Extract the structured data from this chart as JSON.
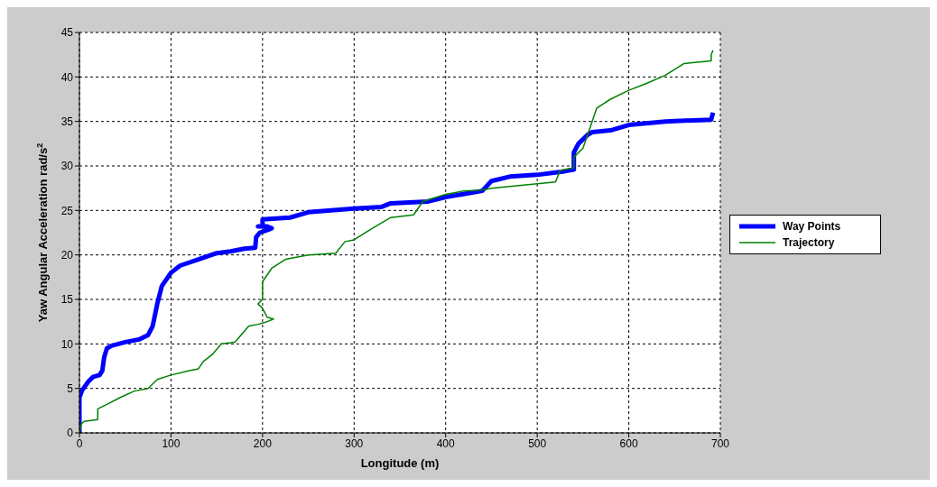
{
  "chart_data": {
    "type": "line",
    "xlabel": "Longitude (m)",
    "ylabel": "Yaw Angular Acceleration rad/s$^{2}$",
    "xlim": [
      0,
      700
    ],
    "xticks": [
      0,
      100,
      200,
      300,
      400,
      500,
      600,
      700
    ],
    "ylim": [
      0,
      45
    ],
    "yticks": [
      0,
      5,
      10,
      15,
      20,
      25,
      30,
      35,
      40,
      45
    ],
    "grid": true,
    "legend": "right",
    "marker": "none",
    "line_style": "solid",
    "series": [
      {
        "name": "Way Points",
        "color": "#0000ff",
        "x": [
          0,
          0,
          3,
          10,
          15,
          22,
          25,
          27,
          30,
          35,
          50,
          65,
          75,
          80,
          85,
          90,
          100,
          110,
          130,
          150,
          165,
          180,
          192,
          193,
          197,
          205,
          210,
          205,
          195,
          200,
          200,
          230,
          250,
          300,
          330,
          340,
          380,
          400,
          440,
          450,
          470,
          500,
          530,
          540,
          540,
          545,
          555,
          560,
          580,
          600,
          640,
          690,
          692
        ],
        "values": [
          0,
          4,
          4.8,
          5.8,
          6.3,
          6.5,
          7,
          8.5,
          9.5,
          9.8,
          10.2,
          10.5,
          11,
          12,
          14.5,
          16.5,
          18,
          18.8,
          19.5,
          20.2,
          20.4,
          20.7,
          20.8,
          22,
          22.5,
          22.8,
          23,
          23.2,
          23.2,
          23.3,
          24,
          24.2,
          24.8,
          25.2,
          25.4,
          25.8,
          26,
          26.5,
          27.2,
          28.3,
          28.8,
          29,
          29.4,
          29.6,
          31.5,
          32.5,
          33.5,
          33.8,
          34,
          34.6,
          35,
          35.2,
          36
        ]
      },
      {
        "name": "Trajectory",
        "color": "#008000",
        "x": [
          0,
          2,
          5,
          20,
          20,
          30,
          45,
          60,
          75,
          85,
          100,
          120,
          130,
          135,
          145,
          155,
          170,
          185,
          195,
          205,
          212,
          205,
          200,
          195,
          200,
          200,
          210,
          225,
          250,
          280,
          290,
          300,
          320,
          340,
          365,
          375,
          400,
          420,
          440,
          450,
          500,
          520,
          525,
          540,
          540,
          550,
          560,
          565,
          580,
          600,
          620,
          640,
          660,
          690,
          690,
          692
        ],
        "values": [
          0,
          1,
          1.3,
          1.5,
          2.7,
          3.2,
          4,
          4.7,
          5,
          6,
          6.5,
          7,
          7.2,
          8,
          8.8,
          10,
          10.2,
          12,
          12.2,
          12.5,
          12.8,
          13,
          14,
          14.5,
          15,
          17,
          18.5,
          19.5,
          20,
          20.2,
          21.5,
          21.7,
          23,
          24.2,
          24.5,
          26,
          26.8,
          27.2,
          27.3,
          27.5,
          28,
          28.2,
          29.5,
          29.8,
          31,
          32,
          35,
          36.5,
          37.5,
          38.5,
          39.3,
          40.2,
          41.5,
          41.8,
          42.5,
          43
        ]
      }
    ]
  }
}
